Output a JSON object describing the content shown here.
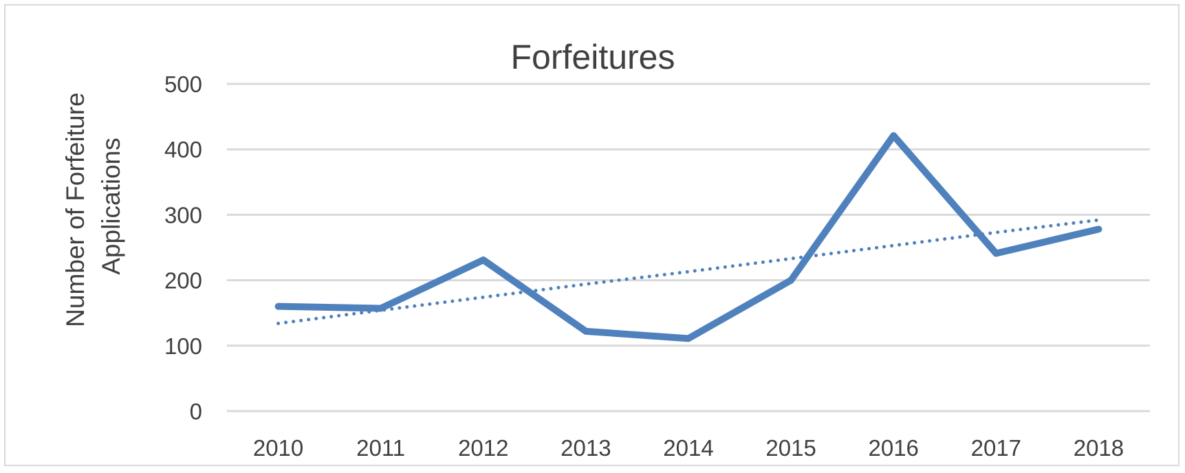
{
  "chart_data": {
    "type": "line",
    "title": "Forfeitures",
    "xlabel": "",
    "ylabel_lines": [
      "Number of Forfeiture",
      "Applications"
    ],
    "categories": [
      "2010",
      "2011",
      "2012",
      "2013",
      "2014",
      "2015",
      "2016",
      "2017",
      "2018"
    ],
    "ylim": [
      0,
      500
    ],
    "yticks": [
      0,
      100,
      200,
      300,
      400,
      500
    ],
    "grid": true,
    "series": [
      {
        "values": [
          160,
          157,
          231,
          122,
          111,
          200,
          421,
          241,
          278
        ],
        "color": "#4f81bd",
        "style": "solid"
      }
    ],
    "trendline": {
      "type": "linear",
      "values": [
        134,
        154,
        174,
        194,
        213,
        233,
        253,
        273,
        292
      ],
      "color": "#4f81bd",
      "style": "dotted"
    }
  }
}
